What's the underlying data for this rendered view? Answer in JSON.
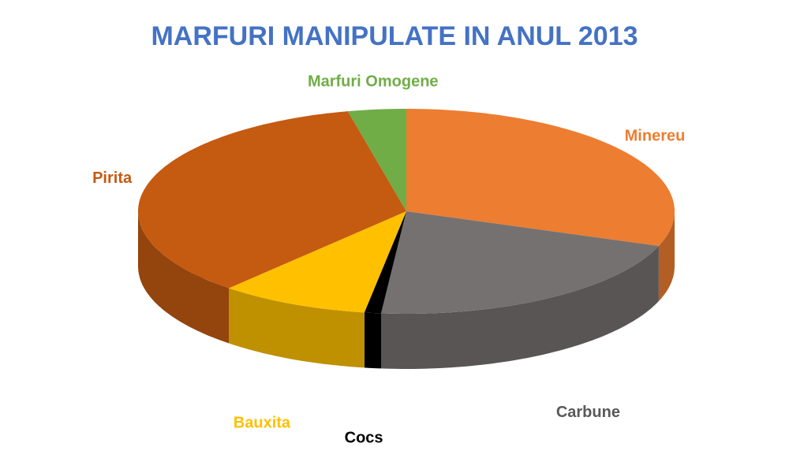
{
  "chart_data": {
    "type": "pie3d",
    "title": "MARFURI MANIPULATE IN ANUL 2013",
    "categories": [
      "Minereu",
      "Carbune",
      "Cocs",
      "Bauxita",
      "Pirita",
      "Marfuri Omogene"
    ],
    "values": [
      30.5,
      21,
      1,
      9,
      35,
      3.5
    ],
    "colors": [
      "#ED7D31",
      "#767171",
      "#000000",
      "#FFC000",
      "#C55A11",
      "#70AD47"
    ],
    "label_colors": [
      "#ED7D31",
      "#595959",
      "#000000",
      "#FFC000",
      "#C55A11",
      "#70AD47"
    ]
  }
}
